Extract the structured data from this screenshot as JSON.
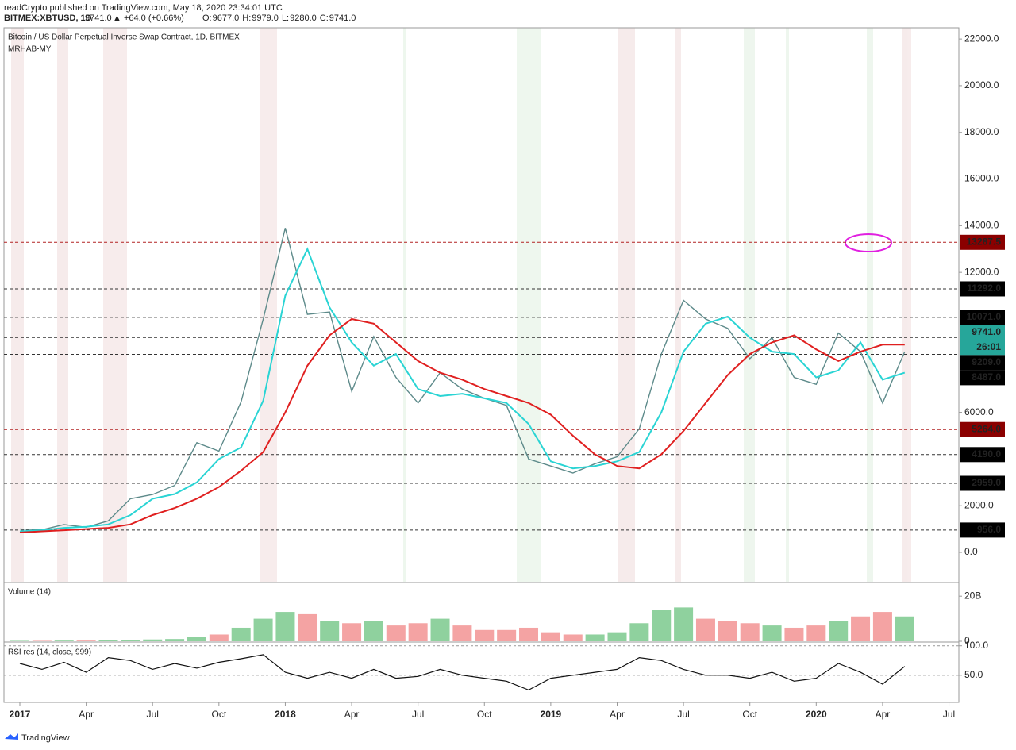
{
  "header": {
    "publisher": "readCrypto published on TradingView.com, May 18, 2020 23:34:01 UTC",
    "symbol": "BITMEX:XBTUSD, 1D",
    "last": "9741.0",
    "change": "▲ +64.0 (+0.66%)",
    "quote": [
      "O:",
      "9677.0",
      "H:",
      "9979.0",
      "L:",
      "9280.0",
      "C:",
      "9741.0"
    ],
    "footer": "TradingView"
  },
  "chart_data": [
    {
      "type": "line",
      "title": "Bitcoin / US Dollar Perpetual Inverse Swap Contract, 1D, BITMEX",
      "subtitle": "MRHAB-MY",
      "x": [
        "2017-01",
        "2017-02",
        "2017-03",
        "2017-04",
        "2017-05",
        "2017-06",
        "2017-07",
        "2017-08",
        "2017-09",
        "2017-10",
        "2017-11",
        "2017-12",
        "2018-01",
        "2018-02",
        "2018-03",
        "2018-04",
        "2018-05",
        "2018-06",
        "2018-07",
        "2018-08",
        "2018-09",
        "2018-10",
        "2018-11",
        "2018-12",
        "2019-01",
        "2019-02",
        "2019-03",
        "2019-04",
        "2019-05",
        "2019-06",
        "2019-07",
        "2019-08",
        "2019-09",
        "2019-10",
        "2019-11",
        "2019-12",
        "2020-01",
        "2020-02",
        "2020-03",
        "2020-04",
        "2020-05"
      ],
      "series": [
        {
          "color": "#5d8a8a",
          "values": [
            1000,
            970,
            1190,
            1080,
            1350,
            2300,
            2480,
            2870,
            4700,
            4340,
            6450,
            10000,
            13900,
            10200,
            10300,
            6900,
            9250,
            7500,
            6400,
            7700,
            7000,
            6600,
            6300,
            4000,
            3700,
            3400,
            3800,
            4100,
            5300,
            8500,
            10800,
            10000,
            9600,
            8300,
            9200,
            7500,
            7200,
            9400,
            8600,
            6400,
            8600
          ]
        },
        {
          "color": "#2ad4d4",
          "values": [
            900,
            950,
            1050,
            1100,
            1200,
            1600,
            2300,
            2500,
            3000,
            4000,
            4500,
            6500,
            11000,
            13000,
            10500,
            9000,
            8000,
            8500,
            7000,
            6700,
            6800,
            6600,
            6400,
            5500,
            3900,
            3600,
            3700,
            3900,
            4300,
            6000,
            8600,
            9800,
            10100,
            9200,
            8600,
            8500,
            7500,
            7800,
            9000,
            7400,
            7700
          ]
        },
        {
          "color": "#e02020",
          "values": [
            850,
            900,
            950,
            1000,
            1050,
            1200,
            1600,
            1900,
            2300,
            2800,
            3500,
            4300,
            6000,
            8000,
            9300,
            10000,
            9800,
            9000,
            8200,
            7700,
            7400,
            7000,
            6700,
            6400,
            5900,
            5000,
            4200,
            3700,
            3600,
            4200,
            5200,
            6400,
            7600,
            8500,
            9000,
            9300,
            8700,
            8200,
            8600,
            8900,
            8900
          ]
        }
      ],
      "ylim": [
        -1258,
        22480
      ],
      "yticks": [
        {
          "value": 0,
          "label": "0.0"
        },
        {
          "value": 2000,
          "label": "2000.0"
        },
        {
          "value": 6000,
          "label": "6000.0"
        },
        {
          "value": 12000,
          "label": "12000.0"
        },
        {
          "value": 14000,
          "label": "14000.0"
        },
        {
          "value": 16000,
          "label": "16000.0"
        },
        {
          "value": 18000,
          "label": "18000.0"
        },
        {
          "value": 20000,
          "label": "20000.0"
        },
        {
          "value": 22000,
          "label": "22000.0"
        }
      ],
      "levels": [
        {
          "value": 13287.5,
          "label": "13287.5",
          "color": "#8b0000"
        },
        {
          "value": 11292,
          "label": "11292.0",
          "color": "#000000"
        },
        {
          "value": 10071,
          "label": "10071.0",
          "color": "#000000"
        },
        {
          "value": 9209,
          "label": "9209.0",
          "color": "#000000"
        },
        {
          "value": 8487,
          "label": "8487.0",
          "color": "#000000"
        },
        {
          "value": 5264,
          "label": "5264.0",
          "color": "#8b0000"
        },
        {
          "value": 4190,
          "label": "4190.0",
          "color": "#000000"
        },
        {
          "value": 2959,
          "label": "2959.0",
          "color": "#000000"
        },
        {
          "value": 956,
          "label": "956.0",
          "color": "#000000"
        }
      ],
      "last_price": {
        "value": 9741,
        "label": "9741.0",
        "color": "#26a69a"
      },
      "countdown": "26:01",
      "xticks": [
        {
          "value": "2017-01",
          "label": "2017"
        },
        {
          "value": "2017-04",
          "label": "Apr"
        },
        {
          "value": "2017-07",
          "label": "Jul"
        },
        {
          "value": "2017-10",
          "label": "Oct"
        },
        {
          "value": "2018-01",
          "label": "2018"
        },
        {
          "value": "2018-04",
          "label": "Apr"
        },
        {
          "value": "2018-07",
          "label": "Jul"
        },
        {
          "value": "2018-10",
          "label": "Oct"
        },
        {
          "value": "2019-01",
          "label": "2019"
        },
        {
          "value": "2019-04",
          "label": "Apr"
        },
        {
          "value": "2019-07",
          "label": "Jul"
        },
        {
          "value": "2019-10",
          "label": "Oct"
        },
        {
          "value": "2020-01",
          "label": "2020"
        },
        {
          "value": "2020-04",
          "label": "Apr"
        },
        {
          "value": "2020-07",
          "label": "Jul"
        }
      ]
    },
    {
      "type": "bar",
      "title": "Volume (14)",
      "up_color": "#8fd19e",
      "down_color": "#f4a3a3",
      "values": [
        0.2,
        0.2,
        0.3,
        0.3,
        0.5,
        0.7,
        0.8,
        1,
        2,
        3,
        6,
        10,
        13,
        12,
        9,
        8,
        9,
        7,
        8,
        10,
        7,
        5,
        5,
        6,
        4,
        3,
        3,
        4,
        8,
        14,
        15,
        10,
        9,
        8,
        7,
        6,
        7,
        9,
        11,
        13,
        11
      ],
      "ylim": [
        0,
        25.7
      ],
      "yticks": [
        {
          "value": 0,
          "label": "0"
        },
        {
          "value": 20,
          "label": "20B"
        }
      ]
    },
    {
      "type": "line",
      "title": "RSI res (14, close, 999)",
      "color": "#111111",
      "values": [
        70,
        60,
        72,
        55,
        80,
        75,
        60,
        70,
        62,
        72,
        78,
        85,
        55,
        45,
        55,
        45,
        60,
        45,
        48,
        60,
        50,
        45,
        40,
        25,
        45,
        50,
        55,
        60,
        80,
        75,
        60,
        50,
        50,
        45,
        55,
        40,
        45,
        70,
        55,
        35,
        65
      ],
      "ylim": [
        4,
        105
      ],
      "yticks": [
        {
          "value": 50,
          "label": "50.0"
        },
        {
          "value": 100,
          "label": "100.0"
        }
      ]
    }
  ]
}
